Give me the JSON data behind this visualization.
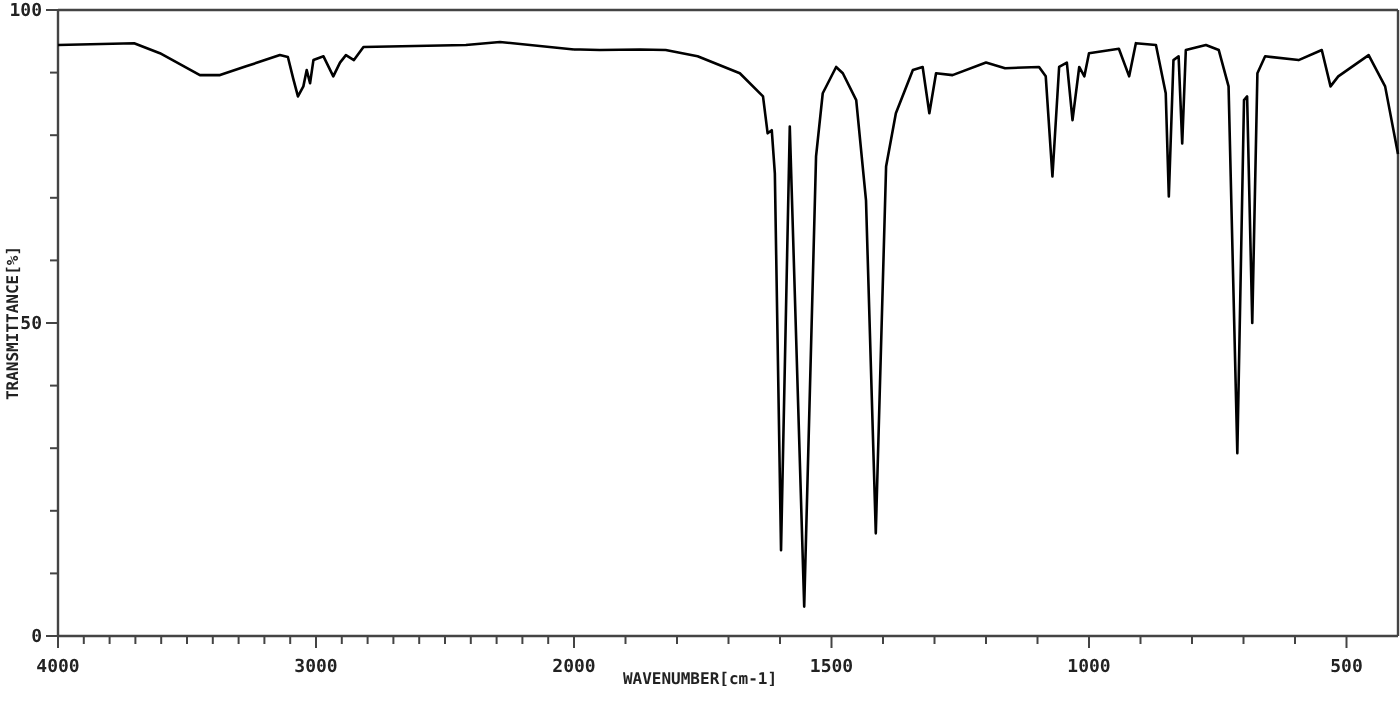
{
  "chart_data": [
    {
      "type": "line",
      "ylabel": "TRANSMITTANCE[%]",
      "color": "#000000",
      "x": [
        4000,
        3705,
        3605,
        3450,
        3372,
        3271,
        3140,
        3109,
        3088,
        3070,
        3049,
        3036,
        3023,
        3010,
        2971,
        2933,
        2907,
        2884,
        2853,
        2816,
        2419,
        2287,
        2000
      ],
      "values": [
        94.4,
        94.7,
        93.1,
        89.6,
        89.6,
        91.0,
        92.8,
        92.5,
        89.0,
        86.2,
        87.8,
        90.4,
        88.3,
        92.0,
        92.6,
        89.4,
        91.6,
        92.8,
        92.0,
        94.1,
        94.4,
        94.9,
        93.7
      ],
      "xlim": [
        4000,
        2000
      ],
      "xticks": [
        4000,
        {
          "value": 3900,
          "label": null
        },
        {
          "value": 3800,
          "label": null
        },
        {
          "value": 3700,
          "label": null
        },
        {
          "value": 3600,
          "label": null
        },
        {
          "value": 3500,
          "label": null
        },
        {
          "value": 3400,
          "label": null
        },
        {
          "value": 3300,
          "label": null
        },
        {
          "value": 3200,
          "label": null
        },
        {
          "value": 3100,
          "label": null
        },
        3000,
        {
          "value": 2900,
          "label": null
        },
        {
          "value": 2800,
          "label": null
        },
        {
          "value": 2700,
          "label": null
        },
        {
          "value": 2600,
          "label": null
        },
        {
          "value": 2500,
          "label": null
        },
        {
          "value": 2400,
          "label": null
        },
        {
          "value": 2300,
          "label": null
        },
        {
          "value": 2200,
          "label": null
        },
        {
          "value": 2100,
          "label": null
        },
        2000
      ],
      "ylim": [
        0,
        100
      ],
      "yticks": [
        0,
        {
          "value": 10,
          "label": null
        },
        {
          "value": 20,
          "label": null
        },
        {
          "value": 30,
          "label": null
        },
        {
          "value": 40,
          "label": null
        },
        50,
        {
          "value": 60,
          "label": null
        },
        {
          "value": 70,
          "label": null
        },
        {
          "value": 80,
          "label": null
        },
        {
          "value": 90,
          "label": null
        },
        100
      ]
    },
    {
      "type": "line",
      "xlabel": "WAVENUMBER[cm-1]",
      "color": "#000000",
      "tick_labels": "x",
      "x": [
        2000,
        1988,
        1950,
        1872,
        1822,
        1760,
        1678,
        1633,
        1624,
        1616,
        1610,
        1598,
        1581,
        1553,
        1530,
        1517,
        1491,
        1478,
        1452,
        1433,
        1414,
        1394,
        1375,
        1342,
        1323,
        1310,
        1297,
        1265,
        1200,
        1163,
        1097,
        1084,
        1071,
        1058,
        1043,
        1032,
        1019,
        1009,
        1000,
        942,
        922,
        909,
        870,
        851,
        845,
        836,
        826,
        819,
        812,
        773,
        748,
        729,
        712,
        699,
        693,
        683,
        673,
        658,
        593,
        548,
        531,
        516,
        457,
        425,
        400
      ],
      "values": [
        93.7,
        93.7,
        93.6,
        93.7,
        93.6,
        92.6,
        89.9,
        86.2,
        80.3,
        80.8,
        73.9,
        13.7,
        81.4,
        4.7,
        76.6,
        86.7,
        90.9,
        89.9,
        85.6,
        69.6,
        16.4,
        75.0,
        83.5,
        90.4,
        90.9,
        83.5,
        89.9,
        89.6,
        91.6,
        90.7,
        90.9,
        89.4,
        73.4,
        90.9,
        91.6,
        82.4,
        90.9,
        89.4,
        93.1,
        93.8,
        89.4,
        94.7,
        94.4,
        86.7,
        70.2,
        92.0,
        92.6,
        78.7,
        93.6,
        94.4,
        93.6,
        87.8,
        29.2,
        85.6,
        86.2,
        50.0,
        89.9,
        92.6,
        92.0,
        93.6,
        87.8,
        89.4,
        92.8,
        87.8,
        77.0
      ],
      "xlim": [
        2000,
        400
      ],
      "xticks": [
        {
          "value": 1900,
          "label": null
        },
        {
          "value": 1800,
          "label": null
        },
        {
          "value": 1700,
          "label": null
        },
        {
          "value": 1600,
          "label": null
        },
        1500,
        {
          "value": 1400,
          "label": null
        },
        {
          "value": 1300,
          "label": null
        },
        {
          "value": 1200,
          "label": null
        },
        {
          "value": 1100,
          "label": null
        },
        1000,
        {
          "value": 900,
          "label": null
        },
        {
          "value": 800,
          "label": null
        },
        {
          "value": 700,
          "label": null
        },
        {
          "value": 600,
          "label": null
        },
        500
      ],
      "ylim": [
        0,
        100
      ]
    }
  ]
}
